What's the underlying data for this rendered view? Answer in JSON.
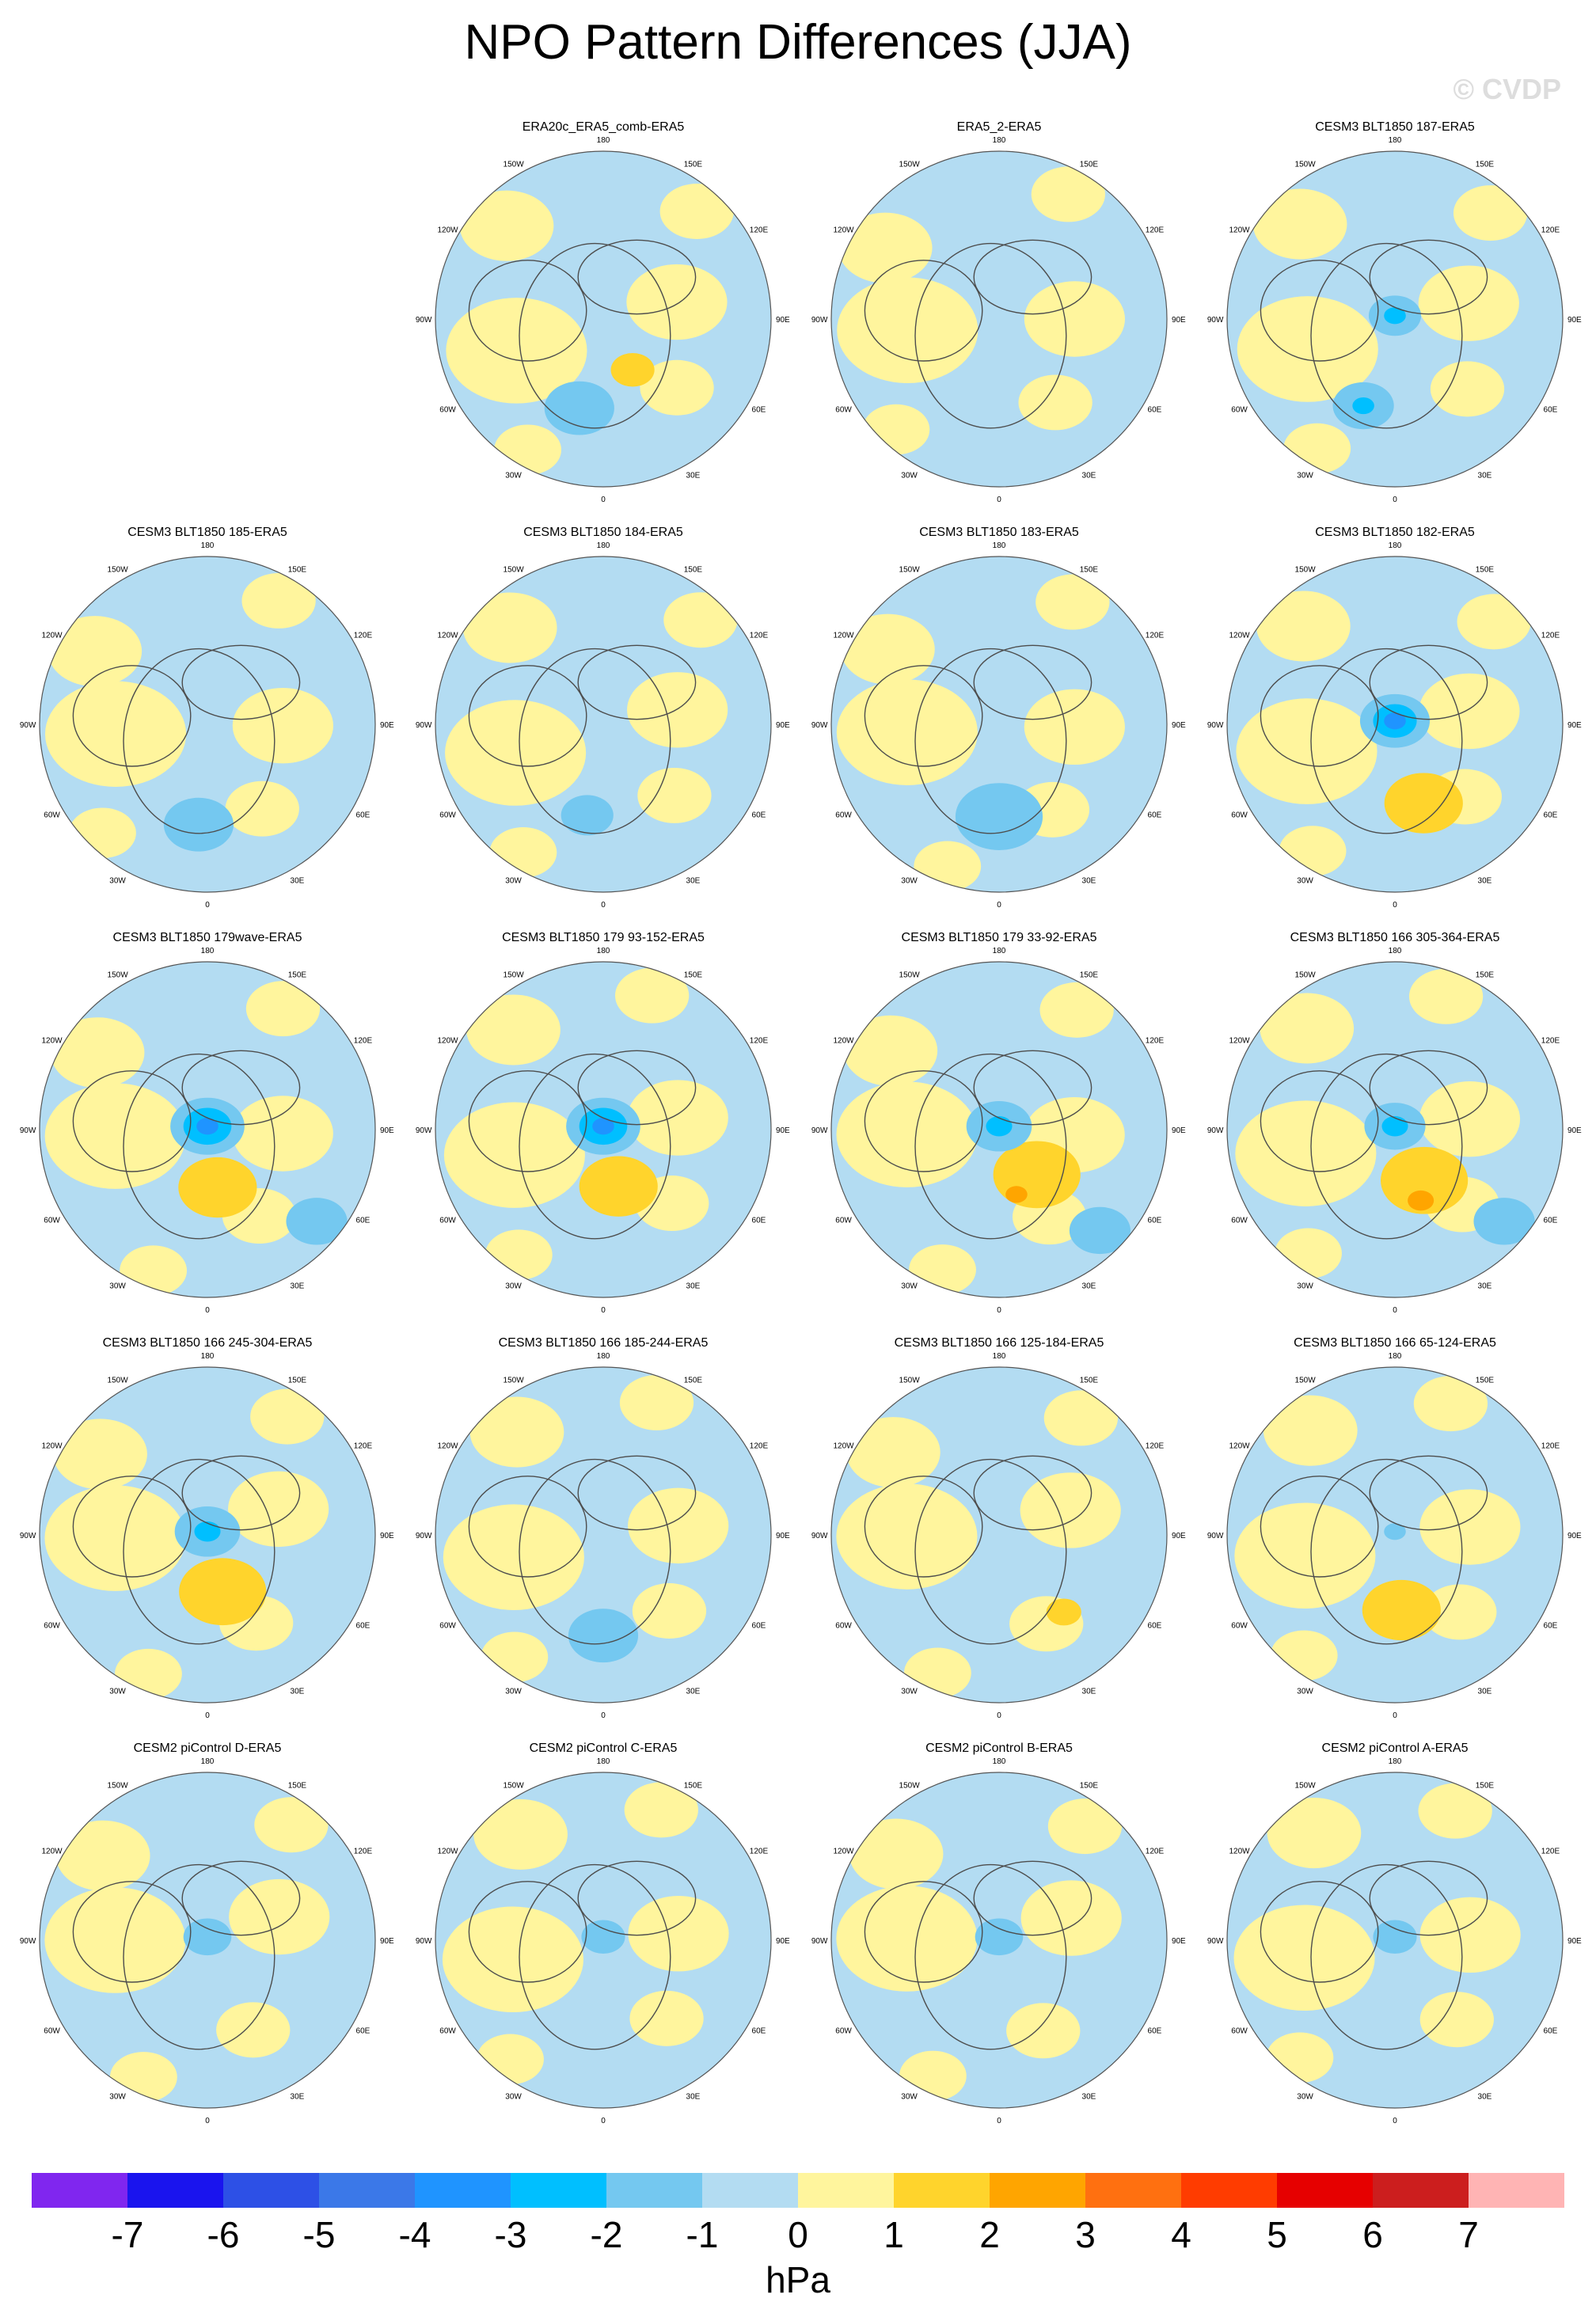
{
  "title": "NPO Pattern Differences (JJA)",
  "copyright": "© CVDP",
  "colors": {
    "ocean_negative": "#b3dcf2",
    "positive": "#fff59d",
    "coastline": "#4d4d4d"
  },
  "lon_labels": [
    "180",
    "150E",
    "120E",
    "90E",
    "60E",
    "30E",
    "0",
    "30W",
    "60W",
    "90W",
    "120W",
    "150W"
  ],
  "panels": [
    {
      "row": 0,
      "col": 1,
      "title": "ERA20c_ERA5_comb-ERA5",
      "features": [
        {
          "sign": "neg",
          "level": 2,
          "lon": 195,
          "r": 0.55,
          "size": 0.16
        },
        {
          "sign": "pos",
          "level": 2,
          "lon": 150,
          "r": 0.35,
          "size": 0.1
        }
      ]
    },
    {
      "row": 0,
      "col": 2,
      "title": "ERA5_2-ERA5",
      "features": []
    },
    {
      "row": 0,
      "col": 3,
      "title": "CESM3 BLT1850 187-ERA5",
      "features": [
        {
          "sign": "neg",
          "level": 2,
          "lon": 200,
          "r": 0.55,
          "size": 0.14
        },
        {
          "sign": "neg",
          "level": 3,
          "lon": 200,
          "r": 0.55,
          "size": 0.05
        },
        {
          "sign": "neg",
          "level": 2,
          "lon": 0,
          "r": 0.02,
          "size": 0.12
        },
        {
          "sign": "neg",
          "level": 3,
          "lon": 0,
          "r": 0.02,
          "size": 0.05
        }
      ]
    },
    {
      "row": 1,
      "col": 0,
      "title": "CESM3 BLT1850 185-ERA5",
      "features": [
        {
          "sign": "neg",
          "level": 2,
          "lon": 185,
          "r": 0.6,
          "size": 0.16
        }
      ]
    },
    {
      "row": 1,
      "col": 1,
      "title": "CESM3 BLT1850 184-ERA5",
      "features": [
        {
          "sign": "neg",
          "level": 2,
          "lon": 190,
          "r": 0.55,
          "size": 0.12
        }
      ]
    },
    {
      "row": 1,
      "col": 2,
      "title": "CESM3 BLT1850 183-ERA5",
      "features": [
        {
          "sign": "neg",
          "level": 2,
          "lon": 180,
          "r": 0.55,
          "size": 0.2
        }
      ]
    },
    {
      "row": 1,
      "col": 3,
      "title": "CESM3 BLT1850 182-ERA5",
      "features": [
        {
          "sign": "pos",
          "level": 2,
          "lon": 160,
          "r": 0.5,
          "size": 0.18
        },
        {
          "sign": "neg",
          "level": 2,
          "lon": 0,
          "r": 0.02,
          "size": 0.16
        },
        {
          "sign": "neg",
          "level": 3,
          "lon": 0,
          "r": 0.02,
          "size": 0.1
        },
        {
          "sign": "neg",
          "level": 4,
          "lon": 0,
          "r": 0.02,
          "size": 0.05
        }
      ]
    },
    {
      "row": 2,
      "col": 0,
      "title": "CESM3 BLT1850 179wave-ERA5",
      "features": [
        {
          "sign": "pos",
          "level": 2,
          "lon": 170,
          "r": 0.35,
          "size": 0.18
        },
        {
          "sign": "neg",
          "level": 2,
          "lon": 130,
          "r": 0.85,
          "size": 0.14
        },
        {
          "sign": "neg",
          "level": 2,
          "lon": 0,
          "r": 0.02,
          "size": 0.17
        },
        {
          "sign": "neg",
          "level": 3,
          "lon": 0,
          "r": 0.02,
          "size": 0.11
        },
        {
          "sign": "neg",
          "level": 4,
          "lon": 0,
          "r": 0.02,
          "size": 0.05
        }
      ]
    },
    {
      "row": 2,
      "col": 1,
      "title": "CESM3 BLT1850 179 93-152-ERA5",
      "features": [
        {
          "sign": "pos",
          "level": 2,
          "lon": 165,
          "r": 0.35,
          "size": 0.18
        },
        {
          "sign": "neg",
          "level": 2,
          "lon": 0,
          "r": 0.02,
          "size": 0.17
        },
        {
          "sign": "neg",
          "level": 3,
          "lon": 0,
          "r": 0.02,
          "size": 0.11
        },
        {
          "sign": "neg",
          "level": 4,
          "lon": 0,
          "r": 0.02,
          "size": 0.05
        }
      ]
    },
    {
      "row": 2,
      "col": 2,
      "title": "CESM3 BLT1850 179 33-92-ERA5",
      "features": [
        {
          "sign": "pos",
          "level": 2,
          "lon": 140,
          "r": 0.35,
          "size": 0.2
        },
        {
          "sign": "pos",
          "level": 3,
          "lon": 165,
          "r": 0.4,
          "size": 0.05
        },
        {
          "sign": "neg",
          "level": 2,
          "lon": 135,
          "r": 0.85,
          "size": 0.14
        },
        {
          "sign": "neg",
          "level": 2,
          "lon": 0,
          "r": 0.02,
          "size": 0.15
        },
        {
          "sign": "neg",
          "level": 3,
          "lon": 0,
          "r": 0.02,
          "size": 0.06
        }
      ]
    },
    {
      "row": 2,
      "col": 3,
      "title": "CESM3 BLT1850 166 305-364-ERA5",
      "features": [
        {
          "sign": "pos",
          "level": 2,
          "lon": 150,
          "r": 0.35,
          "size": 0.2
        },
        {
          "sign": "pos",
          "level": 3,
          "lon": 160,
          "r": 0.45,
          "size": 0.06
        },
        {
          "sign": "neg",
          "level": 2,
          "lon": 130,
          "r": 0.85,
          "size": 0.14
        },
        {
          "sign": "neg",
          "level": 2,
          "lon": 0,
          "r": 0.02,
          "size": 0.14
        },
        {
          "sign": "neg",
          "level": 3,
          "lon": 0,
          "r": 0.02,
          "size": 0.06
        }
      ]
    },
    {
      "row": 3,
      "col": 0,
      "title": "CESM3 BLT1850 166 245-304-ERA5",
      "features": [
        {
          "sign": "pos",
          "level": 2,
          "lon": 165,
          "r": 0.35,
          "size": 0.2
        },
        {
          "sign": "neg",
          "level": 2,
          "lon": 0,
          "r": 0.02,
          "size": 0.15
        },
        {
          "sign": "neg",
          "level": 3,
          "lon": 0,
          "r": 0.02,
          "size": 0.06
        }
      ]
    },
    {
      "row": 3,
      "col": 1,
      "title": "CESM3 BLT1850 166 185-244-ERA5",
      "features": [
        {
          "sign": "neg",
          "level": 2,
          "lon": 180,
          "r": 0.6,
          "size": 0.16
        }
      ]
    },
    {
      "row": 3,
      "col": 2,
      "title": "CESM3 BLT1850 166 125-184-ERA5",
      "features": [
        {
          "sign": "pos",
          "level": 2,
          "lon": 140,
          "r": 0.6,
          "size": 0.08
        }
      ]
    },
    {
      "row": 3,
      "col": 3,
      "title": "CESM3 BLT1850 166 65-124-ERA5",
      "features": [
        {
          "sign": "pos",
          "level": 2,
          "lon": 175,
          "r": 0.45,
          "size": 0.18
        },
        {
          "sign": "neg",
          "level": 2,
          "lon": 0,
          "r": 0.02,
          "size": 0.05
        }
      ]
    },
    {
      "row": 4,
      "col": 0,
      "title": "CESM2 piControl D-ERA5",
      "features": [
        {
          "sign": "neg",
          "level": 2,
          "lon": 0,
          "r": 0.02,
          "size": 0.11
        }
      ]
    },
    {
      "row": 4,
      "col": 1,
      "title": "CESM2 piControl C-ERA5",
      "features": [
        {
          "sign": "neg",
          "level": 2,
          "lon": 0,
          "r": 0.02,
          "size": 0.1
        }
      ]
    },
    {
      "row": 4,
      "col": 2,
      "title": "CESM2 piControl B-ERA5",
      "features": [
        {
          "sign": "neg",
          "level": 2,
          "lon": 0,
          "r": 0.02,
          "size": 0.11
        }
      ]
    },
    {
      "row": 4,
      "col": 3,
      "title": "CESM2 piControl A-ERA5",
      "features": [
        {
          "sign": "neg",
          "level": 2,
          "lon": 0,
          "r": 0.02,
          "size": 0.1
        }
      ]
    }
  ],
  "colorbar": {
    "colors": [
      "#8026ef",
      "#1a14ee",
      "#2d50e6",
      "#3b78e8",
      "#1f94ff",
      "#00bfff",
      "#74c8f0",
      "#b3dcf2",
      "#fff59d",
      "#ffd42c",
      "#ffa500",
      "#ff7010",
      "#ff3c00",
      "#e60000",
      "#cc1e1e",
      "#ffb4b4"
    ],
    "labels": [
      "-7",
      "-6",
      "-5",
      "-4",
      "-3",
      "-2",
      "-1",
      "0",
      "1",
      "2",
      "3",
      "4",
      "5",
      "6",
      "7"
    ],
    "units": "hPa"
  }
}
